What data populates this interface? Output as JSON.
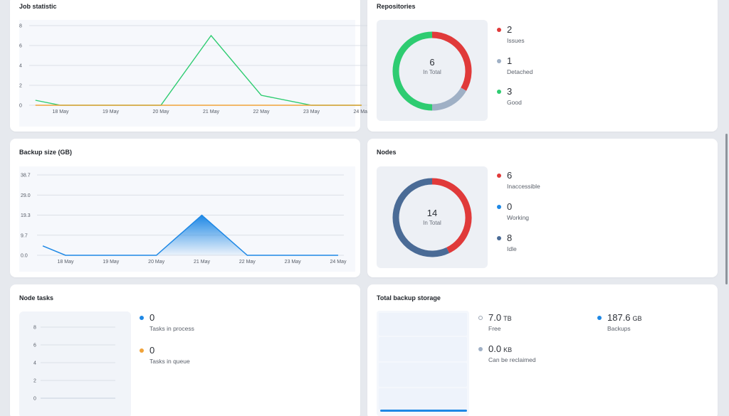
{
  "job_statistic": {
    "title": "Job statistic",
    "colors": {
      "green": "#2ecc71",
      "orange": "#f0a33a"
    }
  },
  "backup_size": {
    "title": "Backup size (GB)",
    "color": "#1e88e5"
  },
  "repositories": {
    "title": "Repositories",
    "total": "6",
    "total_label": "In Total",
    "items": [
      {
        "value": "2",
        "label": "Issues",
        "color": "#e03a3a"
      },
      {
        "value": "1",
        "label": "Detached",
        "color": "#9fb0c5"
      },
      {
        "value": "3",
        "label": "Good",
        "color": "#2ecc71"
      }
    ]
  },
  "nodes": {
    "title": "Nodes",
    "total": "14",
    "total_label": "In Total",
    "items": [
      {
        "value": "6",
        "label": "Inaccessible",
        "color": "#e03a3a"
      },
      {
        "value": "0",
        "label": "Working",
        "color": "#1e88e5"
      },
      {
        "value": "8",
        "label": "Idle",
        "color": "#4a6b96"
      }
    ]
  },
  "node_tasks": {
    "title": "Node tasks",
    "items": [
      {
        "value": "0",
        "label": "Tasks in process",
        "color": "#1e88e5"
      },
      {
        "value": "0",
        "label": "Tasks in queue",
        "color": "#f0a33a"
      }
    ],
    "y_ticks": [
      "8",
      "6",
      "4",
      "2",
      "0"
    ]
  },
  "total_backup_storage": {
    "title": "Total backup storage",
    "free": {
      "value": "7.0",
      "unit": "TB",
      "label": "Free"
    },
    "reclaim": {
      "value": "0.0",
      "unit": "KB",
      "label": "Can be reclaimed",
      "color": "#9fb0c5"
    },
    "backups": {
      "value": "187.6",
      "unit": "GB",
      "label": "Backups",
      "color": "#1e88e5"
    }
  },
  "chart_data": [
    {
      "type": "line",
      "x": [
        "18 May",
        "19 May",
        "20 May",
        "21 May",
        "22 May",
        "23 May",
        "24 May"
      ],
      "ylim": [
        0,
        8
      ],
      "y_ticks": [
        "8",
        "6",
        "4",
        "2",
        "0"
      ],
      "series": [
        {
          "points": [
            [
              17.5,
              0.5
            ],
            [
              18,
              0
            ],
            [
              19,
              0
            ],
            [
              20,
              0
            ],
            [
              21,
              7
            ],
            [
              22,
              1
            ],
            [
              23,
              0
            ],
            [
              24,
              0
            ]
          ]
        },
        {
          "points": [
            [
              17.5,
              0
            ],
            [
              18,
              0
            ],
            [
              19,
              0
            ],
            [
              20,
              0
            ],
            [
              21,
              0
            ],
            [
              22,
              0
            ],
            [
              23,
              0
            ],
            [
              24,
              0
            ]
          ]
        }
      ],
      "grid": true
    },
    {
      "type": "area",
      "x": [
        "18 May",
        "19 May",
        "20 May",
        "21 May",
        "22 May",
        "23 May",
        "24 May"
      ],
      "ylim": [
        0,
        38.7
      ],
      "y_ticks": [
        "38.7",
        "29.0",
        "19.3",
        "9.7",
        "0.0"
      ],
      "series": [
        {
          "points": [
            [
              17.5,
              4.5
            ],
            [
              18,
              0
            ],
            [
              19,
              0
            ],
            [
              20,
              0
            ],
            [
              21,
              19.3
            ],
            [
              22,
              0
            ],
            [
              23,
              0
            ],
            [
              24,
              0
            ]
          ]
        }
      ],
      "grid": true
    },
    {
      "type": "pie",
      "categories": [
        "Issues",
        "Detached",
        "Good"
      ],
      "values": [
        2,
        1,
        3
      ]
    },
    {
      "type": "pie",
      "categories": [
        "Inaccessible",
        "Working",
        "Idle"
      ],
      "values": [
        6,
        0,
        8
      ]
    }
  ]
}
